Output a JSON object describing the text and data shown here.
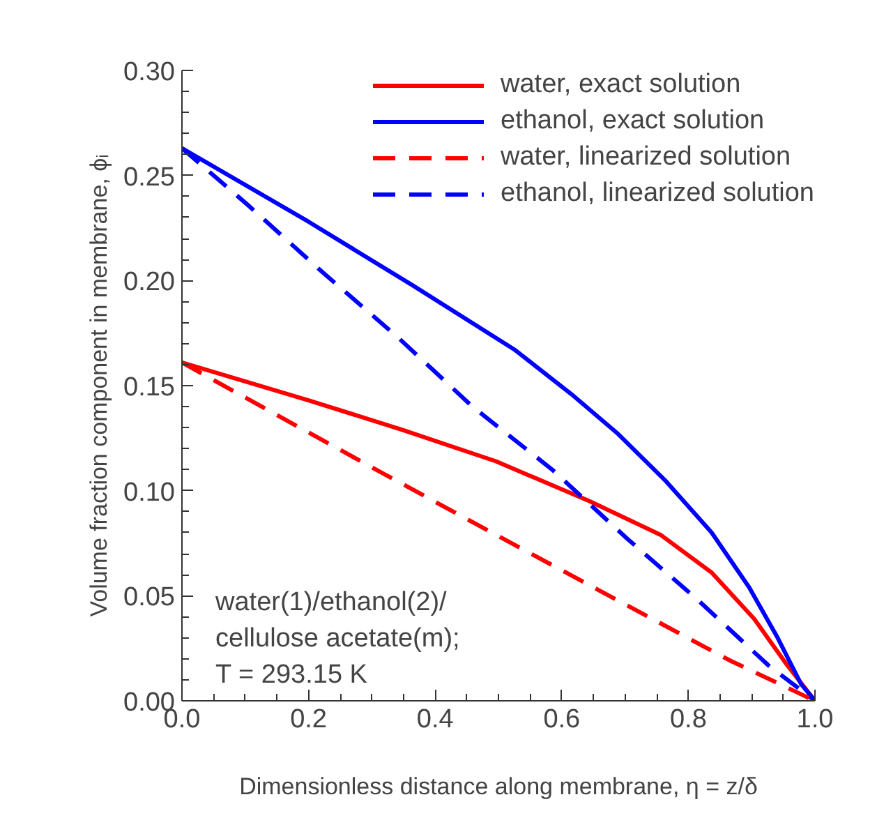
{
  "chart_data": {
    "type": "line",
    "xlabel": "Dimensionless distance along membrane, η = z/δ",
    "ylabel": "Volume fraction component in membrane, ϕᵢ",
    "xlim": [
      0,
      1
    ],
    "ylim": [
      0,
      0.3
    ],
    "xticks": [
      {
        "value": 0,
        "label": "0.0"
      },
      0.2,
      0.4,
      0.6,
      0.8,
      {
        "value": 1,
        "label": "1.0"
      }
    ],
    "yticks": [
      {
        "value": 0,
        "label": "0.00"
      },
      0.05,
      {
        "value": 0.1,
        "label": "0.10"
      },
      0.15,
      {
        "value": 0.2,
        "label": "0.20"
      },
      0.25,
      {
        "value": 0.3,
        "label": "0.30"
      }
    ],
    "grid": false,
    "legend": "top right",
    "annotations": [
      "water(1)/ethanol(2)/",
      "cellulose acetate(m);",
      "T = 293.15 K"
    ],
    "series": [
      {
        "name": "water, exact solution",
        "color": "#ff0000",
        "line_style": "solid",
        "x": [
          0,
          0.2,
          0.348,
          0.496,
          0.644,
          0.756,
          0.837,
          0.904,
          0.956,
          1.0
        ],
        "values": [
          0.161,
          0.143,
          0.129,
          0.114,
          0.095,
          0.079,
          0.061,
          0.039,
          0.017,
          0.0
        ]
      },
      {
        "name": "ethanol, exact solution",
        "color": "#0000ff",
        "line_style": "solid",
        "x": [
          0,
          0.2,
          0.363,
          0.526,
          0.615,
          0.689,
          0.763,
          0.837,
          0.896,
          0.941,
          0.978,
          1.0
        ],
        "values": [
          0.263,
          0.228,
          0.198,
          0.167,
          0.146,
          0.127,
          0.105,
          0.08,
          0.054,
          0.03,
          0.008,
          0.0
        ]
      },
      {
        "name": "water, linearized solution",
        "color": "#ff0000",
        "line_style": "dashed",
        "x": [
          0,
          0.156,
          0.319,
          0.496,
          0.681,
          0.867,
          1.0
        ],
        "values": [
          0.161,
          0.135,
          0.108,
          0.079,
          0.049,
          0.019,
          0.0
        ]
      },
      {
        "name": "ethanol, linearized solution",
        "color": "#0000ff",
        "line_style": "dashed",
        "x": [
          0,
          0.104,
          0.222,
          0.341,
          0.459,
          0.585,
          0.704,
          0.815,
          0.926,
          1.0
        ],
        "values": [
          0.263,
          0.236,
          0.204,
          0.173,
          0.14,
          0.11,
          0.077,
          0.048,
          0.017,
          0.0
        ]
      }
    ]
  }
}
